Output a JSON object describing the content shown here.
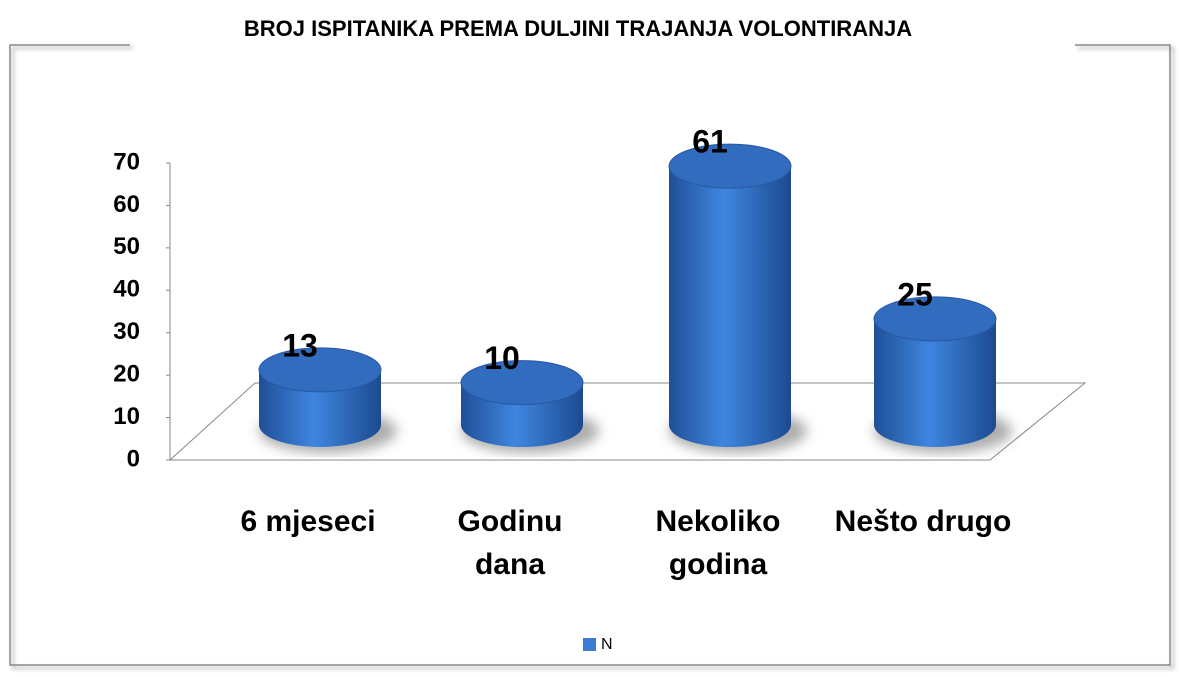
{
  "chart_data": {
    "type": "bar3d",
    "title": "BROJ ISPITANIKA  PREMA DULJINI TRAJANJA VOLONTIRANJA",
    "categories": [
      "6 mjeseci",
      "Godinu\ndana",
      "Nekoliko\ngodina",
      "Nešto drugo"
    ],
    "series": [
      {
        "name": "N",
        "color": "#3b7bd4",
        "values": [
          13,
          10,
          61,
          25
        ]
      }
    ],
    "ylim": [
      0,
      70
    ],
    "yticks": [
      0,
      10,
      20,
      30,
      40,
      50,
      60,
      70
    ],
    "legend": "bottom"
  }
}
